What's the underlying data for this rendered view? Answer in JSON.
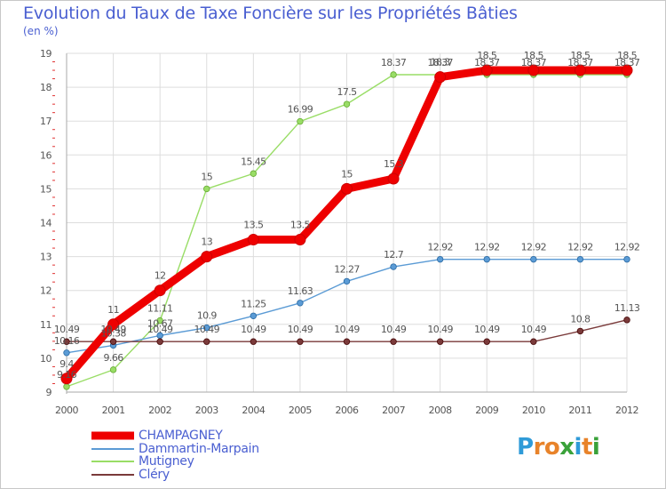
{
  "title": "Evolution du Taux de Taxe Foncière sur les Propriétés Bâties",
  "unit_label": "(en %)",
  "logo": {
    "text": "Proxiti",
    "letters": [
      {
        "ch": "P",
        "color": "#2f9bd8"
      },
      {
        "ch": "r",
        "color": "#e8832a"
      },
      {
        "ch": "o",
        "color": "#e8832a"
      },
      {
        "ch": "x",
        "color": "#3aa23a"
      },
      {
        "ch": "i",
        "color": "#2f9bd8"
      },
      {
        "ch": "t",
        "color": "#e8832a"
      },
      {
        "ch": "i",
        "color": "#3aa23a"
      }
    ]
  },
  "chart_data": {
    "type": "line",
    "title": "Evolution du Taux de Taxe Foncière sur les Propriétés Bâties",
    "ylabel": "(en %)",
    "xlabel": "",
    "ylim": [
      9,
      19
    ],
    "yticks": [
      "9",
      "10",
      "11",
      "12",
      "13",
      "14",
      "15",
      "16",
      "17",
      "18",
      "19"
    ],
    "categories": [
      "2000",
      "2001",
      "2002",
      "2003",
      "2004",
      "2005",
      "2006",
      "2007",
      "2008",
      "2009",
      "2010",
      "2011",
      "2012"
    ],
    "legend_position": "bottom-left",
    "series": [
      {
        "name": "CHAMPAGNEY",
        "color": "#ee0000",
        "values": [
          9.4,
          11,
          12,
          13,
          13.5,
          13.5,
          15,
          15.3,
          18.3,
          18.5,
          18.5,
          18.5,
          18.5
        ],
        "labels": [
          "9.4",
          "11",
          "12",
          "13",
          "13.5",
          "13.5",
          "15",
          "15.3",
          "18.3",
          "18.5",
          "18.5",
          "18.5",
          "18.5"
        ]
      },
      {
        "name": "Dammartin-Marpain",
        "color": "#5b9bd5",
        "values": [
          10.16,
          10.38,
          10.67,
          10.9,
          11.25,
          11.63,
          12.27,
          12.7,
          12.92,
          12.92,
          12.92,
          12.92,
          12.92
        ],
        "labels": [
          "10.16",
          "10.38",
          "10.67",
          "10.9",
          "11.25",
          "11.63",
          "12.27",
          "12.7",
          "12.92",
          "12.92",
          "12.92",
          "12.92",
          "12.92"
        ]
      },
      {
        "name": "Mutigney",
        "color": "#99dd66",
        "values": [
          9.16,
          9.66,
          11.11,
          15,
          15.45,
          16.99,
          17.5,
          18.37,
          18.37,
          18.37,
          18.37,
          18.37,
          18.37
        ],
        "labels": [
          "9.16",
          "9.66",
          "11.11",
          "15",
          "15.45",
          "16.99",
          "17.5",
          "18.37",
          "18.37",
          "18.37",
          "18.37",
          "18.37",
          "18.37"
        ]
      },
      {
        "name": "Cléry",
        "color": "#7a3a3a",
        "values": [
          10.49,
          10.49,
          10.49,
          10.49,
          10.49,
          10.49,
          10.49,
          10.49,
          10.49,
          10.49,
          10.49,
          10.8,
          11.13
        ],
        "labels": [
          "10.49",
          "10.49",
          "10.49",
          "10.49",
          "10.49",
          "10.49",
          "10.49",
          "10.49",
          "10.49",
          "10.49",
          "10.49",
          "10.8",
          "11.13"
        ]
      }
    ]
  }
}
